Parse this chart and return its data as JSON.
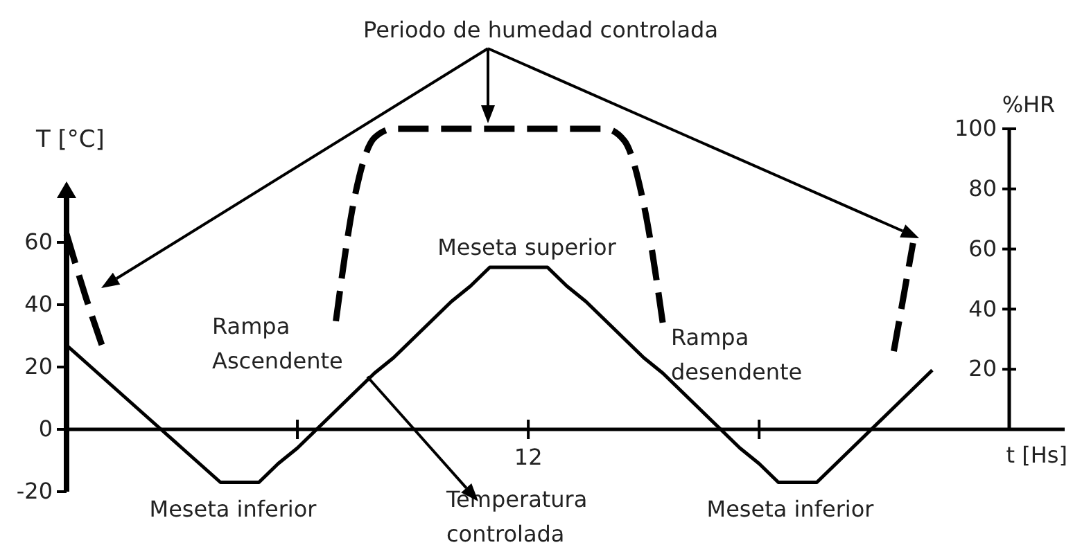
{
  "chart_data": {
    "type": "line",
    "xlabel": "t [Hs]",
    "ylabel": "T [°C]",
    "y2label": "%HR",
    "categories": [
      null,
      null,
      null,
      null,
      null,
      null,
      null,
      null,
      null,
      null,
      null,
      null,
      null,
      null,
      null,
      null,
      null,
      null,
      null,
      null,
      null,
      null,
      null,
      null,
      "12",
      null,
      null,
      null,
      null,
      null,
      null,
      null,
      null,
      null,
      null,
      null,
      null,
      null,
      null,
      null,
      null,
      null,
      null,
      null,
      null,
      null,
      null,
      null,
      null,
      null
    ],
    "ylim": [
      -20,
      76
    ],
    "yticks": [
      -20,
      0,
      20,
      40,
      60
    ],
    "y2lim": [
      0,
      100
    ],
    "y2ticks": [
      20,
      40,
      60,
      80,
      100
    ],
    "marker": "none",
    "series": [
      {
        "color": "#000000",
        "line_style": "solid",
        "values": [
          27,
          21.5,
          16,
          10.5,
          5,
          -0.5,
          -6,
          -11.5,
          -17,
          -17,
          -17,
          -11,
          -6,
          0,
          6,
          12,
          18,
          23,
          29,
          35,
          41,
          46,
          52,
          52,
          52,
          52,
          46,
          41,
          35,
          29,
          23,
          18,
          12,
          6,
          0,
          -6,
          -11,
          -17,
          -17,
          -17,
          -11,
          -5,
          1,
          7,
          13,
          19,
          null,
          null,
          null,
          null
        ]
      },
      {
        "color": "#000000",
        "line_style": "dashed",
        "axis": "y2",
        "values": [
          65,
          44,
          25,
          null,
          null,
          null,
          null,
          null,
          null,
          null,
          null,
          null,
          null,
          null,
          36,
          78,
          97,
          100,
          100,
          100,
          100,
          100,
          100,
          100,
          100,
          100,
          100,
          100,
          100,
          96,
          75,
          35,
          null,
          null,
          null,
          null,
          null,
          null,
          null,
          null,
          null,
          null,
          null,
          26,
          62,
          null,
          null,
          null,
          null,
          null
        ]
      }
    ],
    "annotations": [
      "Periodo de humedad controlada",
      "Meseta superior",
      "Rampa Ascendente",
      "Rampa desendente",
      "Meseta inferior",
      "Meseta inferior",
      "Temperatura controlada"
    ]
  }
}
